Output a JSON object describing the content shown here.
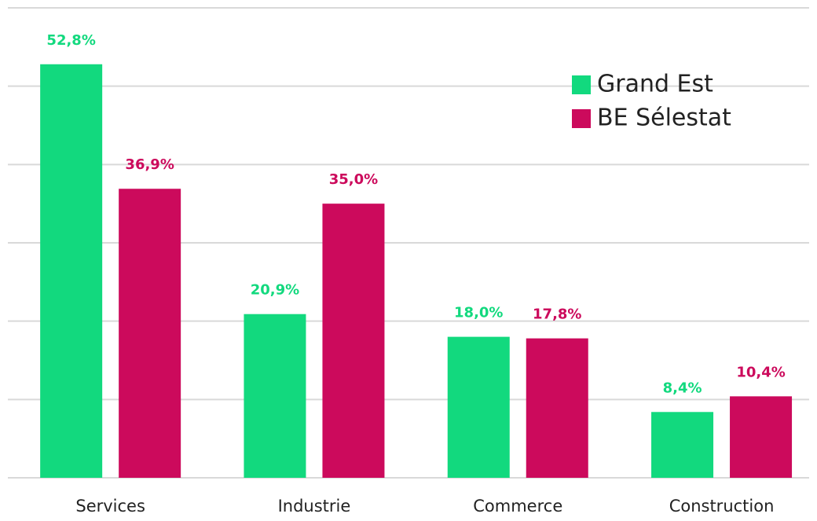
{
  "chart_data": {
    "type": "bar",
    "categories": [
      "Services",
      "Industrie",
      "Commerce",
      "Construction"
    ],
    "series": [
      {
        "name": "Grand Est",
        "color": "#12d97e",
        "values": [
          52.8,
          20.9,
          18.0,
          8.4
        ],
        "value_labels": [
          "52,8%",
          "20,9%",
          "18,0%",
          "8,4%"
        ]
      },
      {
        "name": "BE Sélestat",
        "color": "#cc0a5c",
        "values": [
          36.9,
          35.0,
          17.8,
          10.4
        ],
        "value_labels": [
          "36,9%",
          "35,0%",
          "17,8%",
          "10,4%"
        ]
      }
    ],
    "ylim": [
      0,
      60
    ],
    "yticks": [
      0,
      10,
      20,
      30,
      40,
      50,
      60
    ],
    "grid": true,
    "legend": "top-right"
  }
}
